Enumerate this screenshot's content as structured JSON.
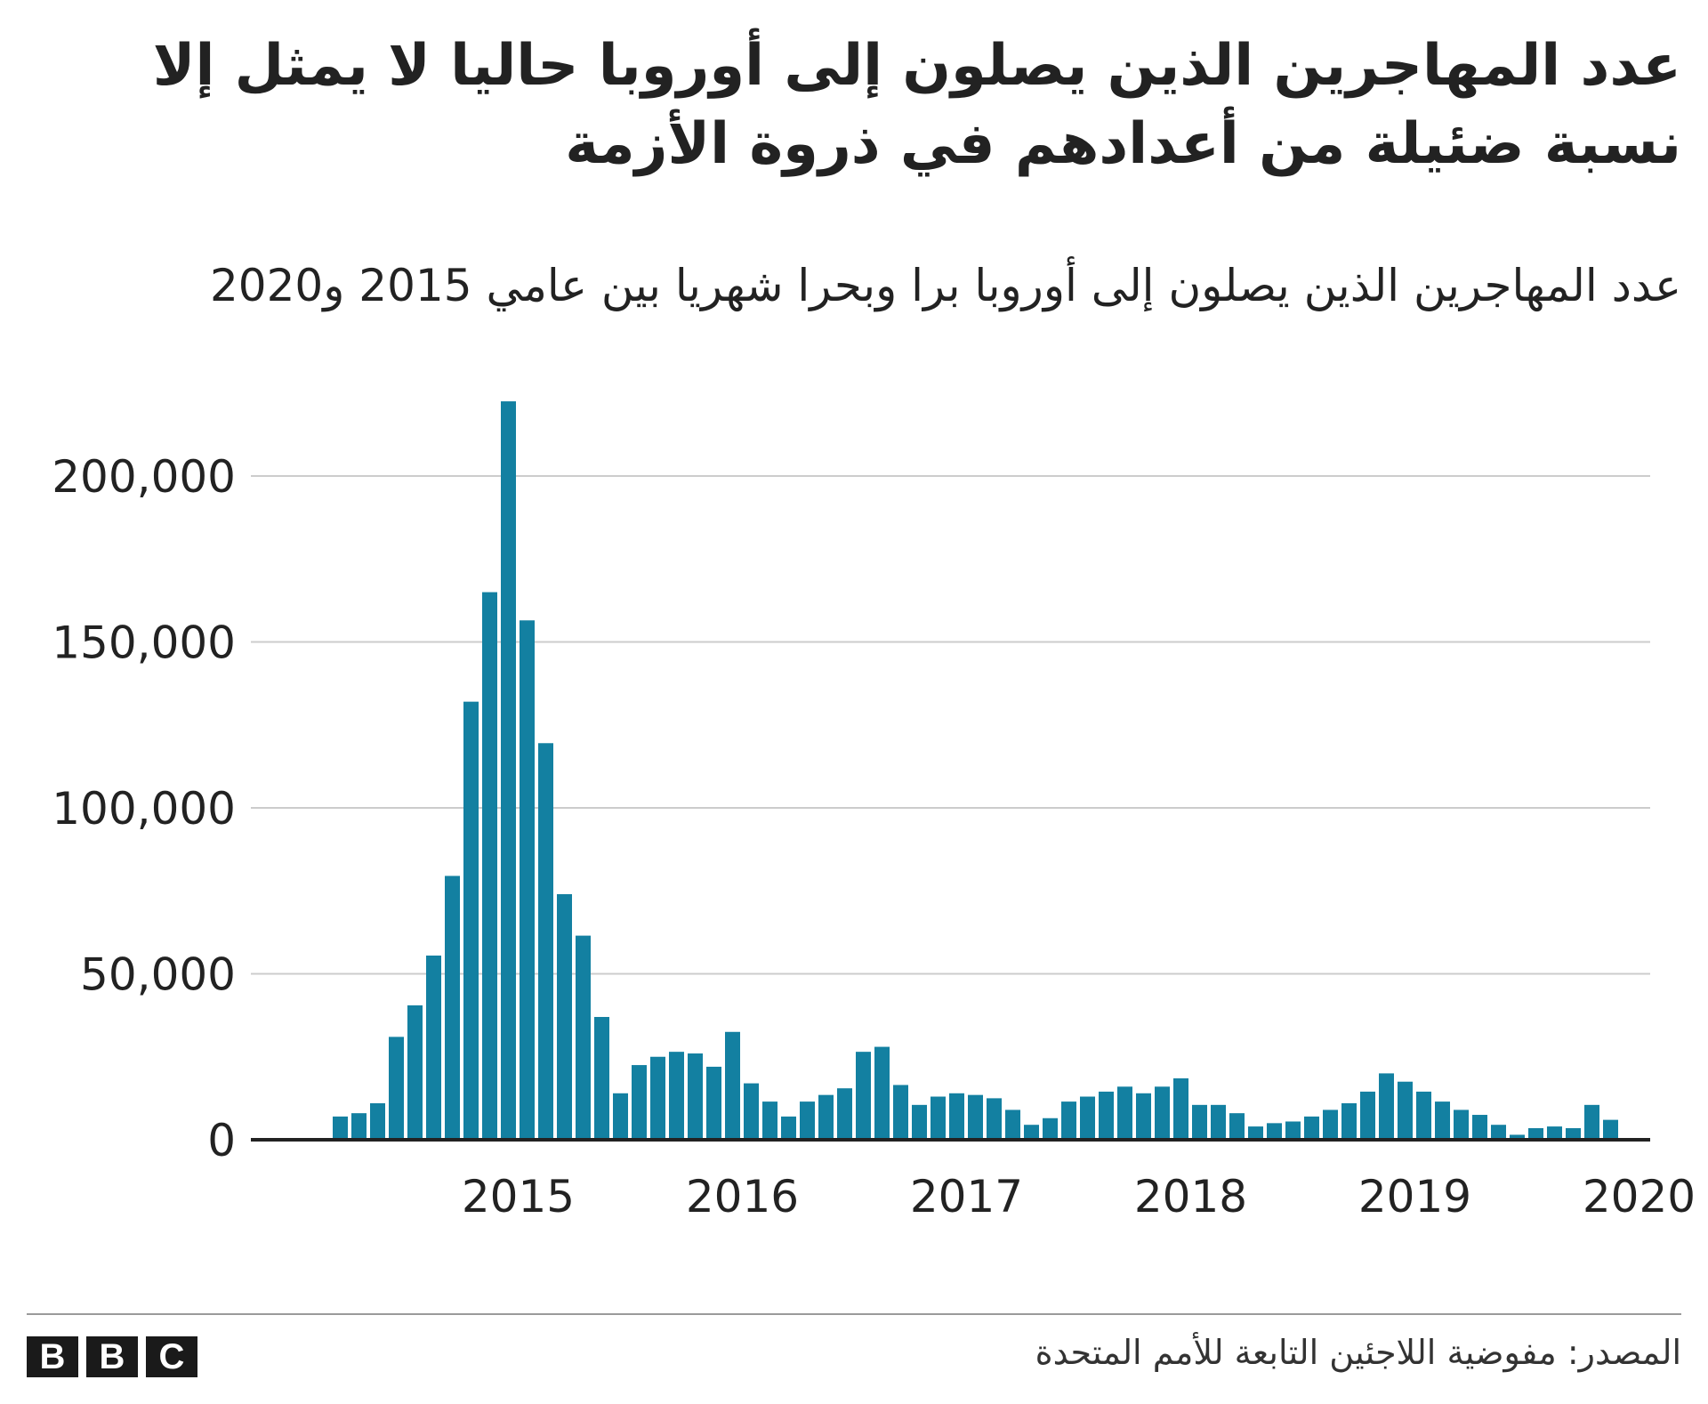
{
  "title": "عدد المهاجرين الذين يصلون إلى أوروبا حاليا لا يمثل إلا نسبة ضئيلة من أعدادهم في ذروة الأزمة",
  "subtitle": "عدد المهاجرين الذين يصلون إلى أوروبا برا وبحرا شهريا بين عامي 2015 و2020",
  "source": "المصدر: مفوضية اللاجئين التابعة للأمم المتحدة",
  "logo": [
    "B",
    "B",
    "C"
  ],
  "colors": {
    "bar": "#1380a1",
    "grid": "#cccccc",
    "baseline": "#222222"
  },
  "chart_data": {
    "type": "bar",
    "ylim": [
      0,
      225000
    ],
    "yticks": [
      0,
      50000,
      100000,
      150000,
      200000
    ],
    "ytick_labels": [
      "0",
      "50,000",
      "100,000",
      "150,000",
      "200,000"
    ],
    "year_labels": [
      "2015",
      "2016",
      "2017",
      "2018",
      "2019",
      "2020"
    ],
    "grid": true,
    "series": [
      {
        "start": "2014-09",
        "values": [
          7000,
          8000,
          11000,
          31000,
          40500,
          55500,
          79500,
          132000,
          165000,
          222500,
          156500,
          119500,
          74000,
          61500,
          37000,
          14000,
          22500,
          25000,
          26500,
          26000,
          22000,
          32500,
          17000,
          11500,
          7000,
          11500,
          13500,
          15500,
          26500,
          28000,
          16500,
          10500,
          13000,
          14000,
          13500,
          12500,
          9000,
          4500,
          6500,
          11500,
          13000,
          14500,
          16000,
          14000,
          16000,
          18500,
          10500,
          10500,
          8000,
          4000,
          5000,
          5500,
          7000,
          9000,
          11000,
          14500,
          20000,
          17500,
          14500,
          11500,
          9000,
          7500,
          4500,
          1500,
          3500,
          4000,
          3500,
          10500,
          6000
        ]
      }
    ]
  }
}
